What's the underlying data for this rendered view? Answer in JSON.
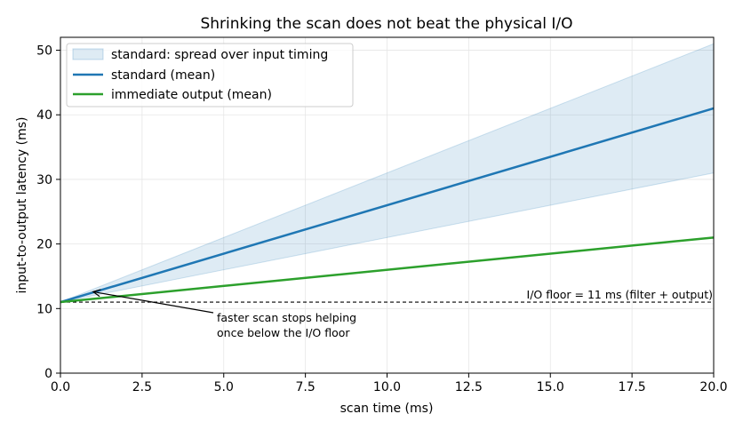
{
  "chart_data": {
    "type": "line",
    "title": "Shrinking the scan does not beat the physical I/O",
    "xlabel": "scan time (ms)",
    "ylabel": "input-to-output latency (ms)",
    "xlim": [
      0,
      20
    ],
    "ylim": [
      0,
      52
    ],
    "x_ticks": [
      0,
      2.5,
      5,
      7.5,
      10,
      12.5,
      15,
      17.5,
      20
    ],
    "x_tick_labels": [
      "0.0",
      "2.5",
      "5.0",
      "7.5",
      "10.0",
      "12.5",
      "15.0",
      "17.5",
      "20.0"
    ],
    "y_ticks": [
      0,
      10,
      20,
      30,
      40,
      50
    ],
    "y_tick_labels": [
      "0",
      "10",
      "20",
      "30",
      "40",
      "50"
    ],
    "grid": true,
    "legend_position": "top-left",
    "band": {
      "name": "standard: spread over input timing",
      "color": "#1f77b4",
      "x": [
        0,
        20
      ],
      "lower": [
        11,
        31
      ],
      "upper": [
        11,
        51
      ]
    },
    "series": [
      {
        "name": "standard (mean)",
        "color": "#1f77b4",
        "x": [
          0,
          20
        ],
        "values": [
          11,
          41
        ]
      },
      {
        "name": "immediate output (mean)",
        "color": "#2ca02c",
        "x": [
          0,
          20
        ],
        "values": [
          11,
          21
        ]
      }
    ],
    "reference_line": {
      "y": 11,
      "label": "I/O floor = 11 ms (filter + output)"
    },
    "annotation": {
      "text_lines": [
        "faster scan stops helping",
        "once below the I/O floor"
      ],
      "point": [
        1.0,
        12.6
      ]
    }
  }
}
